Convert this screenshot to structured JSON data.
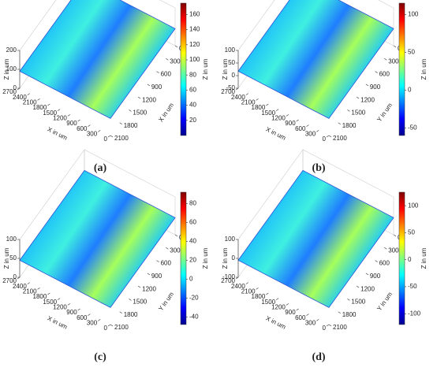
{
  "chart_data": [
    {
      "type": "surface",
      "caption": "(a)",
      "x_label": "X in um",
      "y_label": "X in um",
      "z_label": "Z in um",
      "colorbar_label": "Z in um",
      "xlim": [
        0,
        2700
      ],
      "xticks": [
        0,
        300,
        600,
        900,
        1200,
        1500,
        1800,
        2100,
        2400,
        2700
      ],
      "ylim": [
        0,
        2100
      ],
      "yticks": [
        0,
        300,
        600,
        900,
        1200,
        1500,
        1800,
        2100
      ],
      "zlim": [
        0,
        200
      ],
      "zticks": [
        0,
        100,
        200
      ],
      "clim": [
        0,
        175
      ],
      "cticks": [
        20,
        40,
        60,
        80,
        100,
        120,
        140,
        160
      ],
      "colormap": "jet"
    },
    {
      "type": "surface",
      "caption": "(b)",
      "x_label": "X in um",
      "y_label": "Y in um",
      "z_label": "Z in um",
      "colorbar_label": "Z in um",
      "xlim": [
        0,
        2700
      ],
      "xticks": [
        0,
        300,
        600,
        900,
        1200,
        1500,
        1800,
        2100,
        2400,
        2700
      ],
      "ylim": [
        0,
        2100
      ],
      "yticks": [
        0,
        300,
        600,
        900,
        1200,
        1500,
        1800,
        2100
      ],
      "zlim": [
        -50,
        100
      ],
      "zticks": [
        -50,
        0,
        50,
        100
      ],
      "clim": [
        -60,
        115
      ],
      "cticks": [
        -50,
        0,
        50,
        100
      ],
      "colormap": "jet"
    },
    {
      "type": "surface",
      "caption": "(c)",
      "x_label": "X in um",
      "y_label": "Y in um",
      "z_label": "Z in um",
      "colorbar_label": "Z in um",
      "xlim": [
        0,
        2700
      ],
      "xticks": [
        0,
        300,
        600,
        900,
        1200,
        1500,
        1800,
        2100,
        2400,
        2700
      ],
      "ylim": [
        0,
        2100
      ],
      "yticks": [
        0,
        300,
        600,
        900,
        1200,
        1500,
        1800,
        2100
      ],
      "zlim": [
        0,
        100
      ],
      "zticks": [
        0,
        50,
        100
      ],
      "clim": [
        -48,
        92
      ],
      "cticks": [
        -40,
        -20,
        0,
        20,
        40,
        60,
        80
      ],
      "colormap": "jet"
    },
    {
      "type": "surface",
      "caption": "(d)",
      "x_label": "X in um",
      "y_label": "Y in um",
      "z_label": "Z in um",
      "colorbar_label": "Z in um",
      "xlim": [
        0,
        2700
      ],
      "xticks": [
        0,
        300,
        600,
        900,
        1200,
        1500,
        1800,
        2100,
        2400,
        2700
      ],
      "ylim": [
        0,
        2100
      ],
      "yticks": [
        0,
        300,
        600,
        900,
        1200,
        1500,
        1800,
        2100
      ],
      "zlim": [
        -100,
        100
      ],
      "zticks": [
        -100,
        0,
        100
      ],
      "clim": [
        -120,
        125
      ],
      "cticks": [
        -100,
        -50,
        0,
        50,
        100
      ],
      "colormap": "jet"
    }
  ]
}
